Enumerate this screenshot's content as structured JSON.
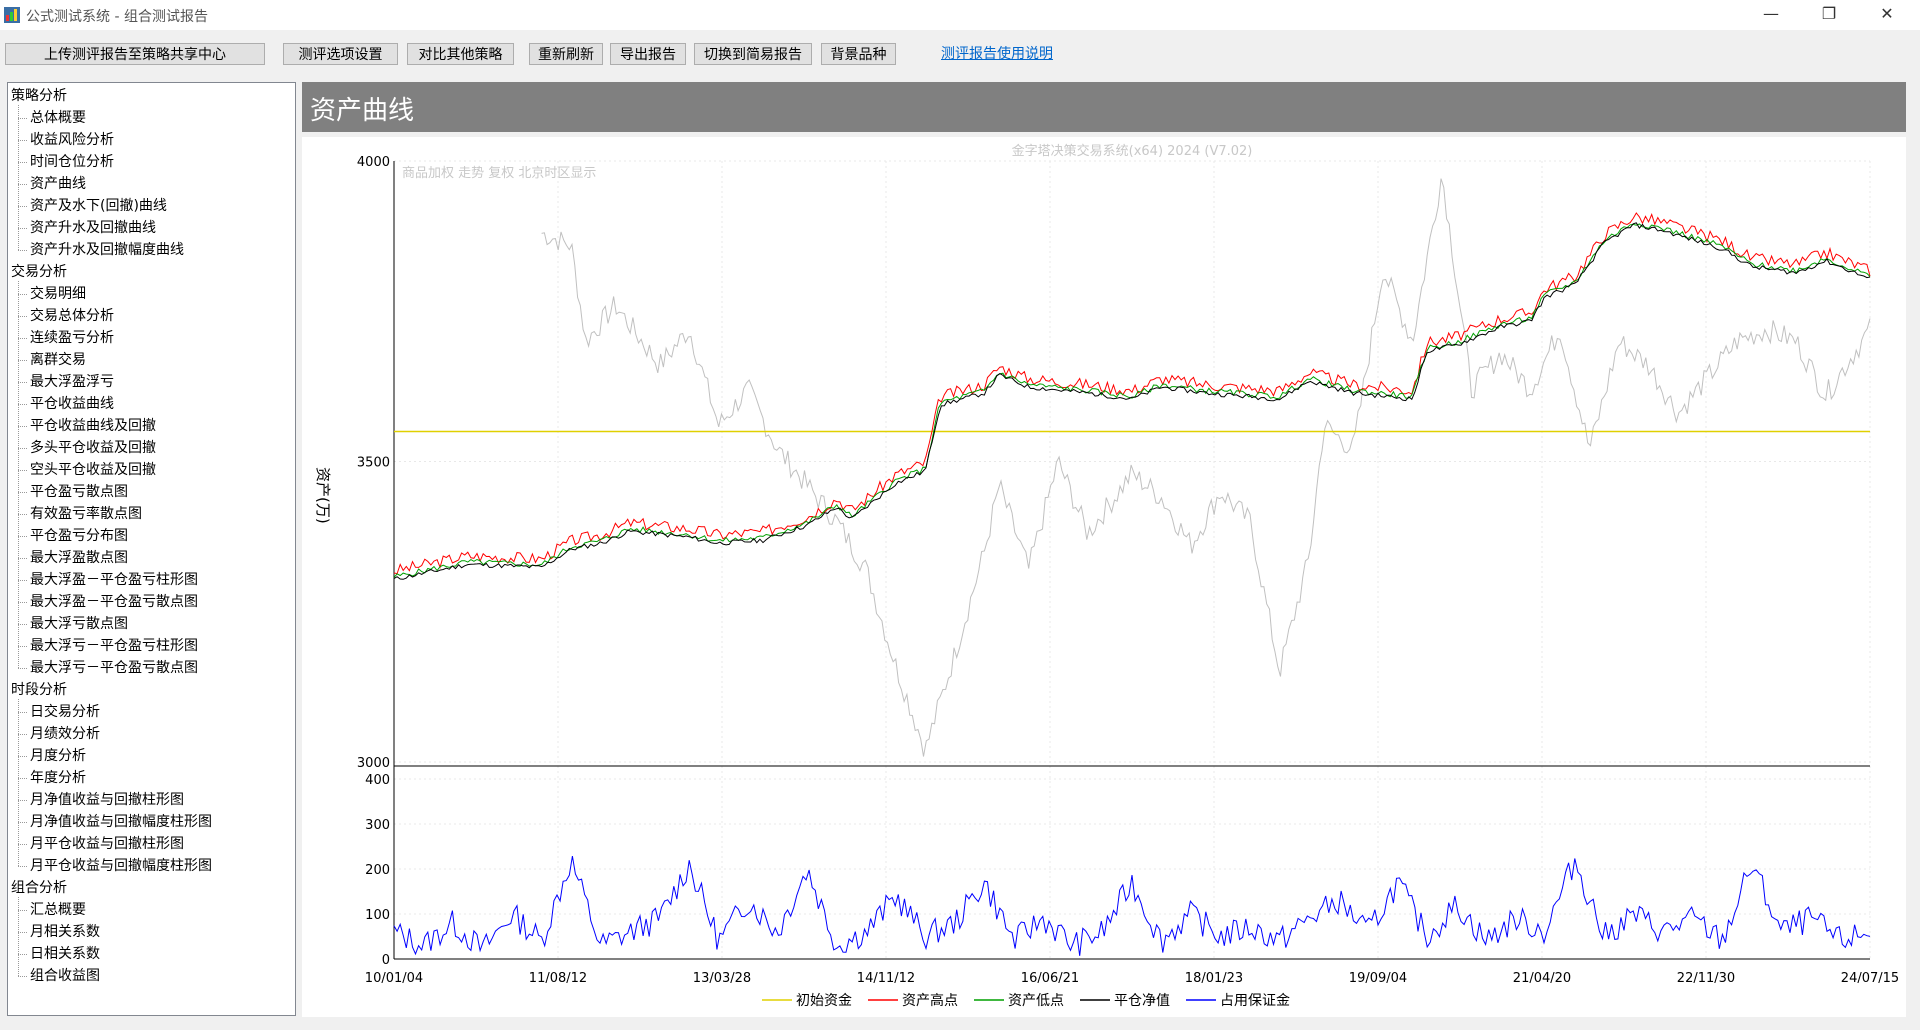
{
  "window": {
    "title": "公式测试系统 - 组合测试报告",
    "minimize_glyph": "—",
    "restore_glyph": "❐",
    "close_glyph": "✕"
  },
  "toolbar": {
    "upload": "上传测评报告至策略共享中心",
    "options": "测评选项设置",
    "compare": "对比其他策略",
    "refresh": "重新刷新",
    "export": "导出报告",
    "switch_simple": "切换到简易报告",
    "background": "背景品种",
    "help_link": "测评报告使用说明"
  },
  "tree": [
    {
      "label": "策略分析",
      "level": 0
    },
    {
      "label": "总体概要",
      "level": 1
    },
    {
      "label": "收益风险分析",
      "level": 1
    },
    {
      "label": "时间仓位分析",
      "level": 1
    },
    {
      "label": "资产曲线",
      "level": 1
    },
    {
      "label": "资产及水下(回撤)曲线",
      "level": 1
    },
    {
      "label": "资产升水及回撤曲线",
      "level": 1
    },
    {
      "label": "资产升水及回撤幅度曲线",
      "level": 1
    },
    {
      "label": "交易分析",
      "level": 0
    },
    {
      "label": "交易明细",
      "level": 1
    },
    {
      "label": "交易总体分析",
      "level": 1
    },
    {
      "label": "连续盈亏分析",
      "level": 1
    },
    {
      "label": "离群交易",
      "level": 1
    },
    {
      "label": "最大浮盈浮亏",
      "level": 1
    },
    {
      "label": "平仓收益曲线",
      "level": 1
    },
    {
      "label": "平仓收益曲线及回撤",
      "level": 1
    },
    {
      "label": "多头平仓收益及回撤",
      "level": 1
    },
    {
      "label": "空头平仓收益及回撤",
      "level": 1
    },
    {
      "label": "平仓盈亏散点图",
      "level": 1
    },
    {
      "label": "有效盈亏率散点图",
      "level": 1
    },
    {
      "label": "平仓盈亏分布图",
      "level": 1
    },
    {
      "label": "最大浮盈散点图",
      "level": 1
    },
    {
      "label": "最大浮盈－平仓盈亏柱形图",
      "level": 1
    },
    {
      "label": "最大浮盈－平仓盈亏散点图",
      "level": 1
    },
    {
      "label": "最大浮亏散点图",
      "level": 1
    },
    {
      "label": "最大浮亏－平仓盈亏柱形图",
      "level": 1
    },
    {
      "label": "最大浮亏－平仓盈亏散点图",
      "level": 1
    },
    {
      "label": "时段分析",
      "level": 0
    },
    {
      "label": "日交易分析",
      "level": 1
    },
    {
      "label": "月绩效分析",
      "level": 1
    },
    {
      "label": "月度分析",
      "level": 1
    },
    {
      "label": "年度分析",
      "level": 1
    },
    {
      "label": "月净值收益与回撤柱形图",
      "level": 1
    },
    {
      "label": "月净值收益与回撤幅度柱形图",
      "level": 1
    },
    {
      "label": "月平仓收益与回撤柱形图",
      "level": 1
    },
    {
      "label": "月平仓收益与回撤幅度柱形图",
      "level": 1
    },
    {
      "label": "组合分析",
      "level": 0
    },
    {
      "label": "汇总概要",
      "level": 1
    },
    {
      "label": "月相关系数",
      "level": 1
    },
    {
      "label": "日相关系数",
      "level": 1
    },
    {
      "label": "组合收益图",
      "level": 1
    }
  ],
  "panel": {
    "title": "资产曲线"
  },
  "chart_data": {
    "type": "line",
    "watermark": "金字塔决策交易系统(x64) 2024 (V7.02)",
    "subtitle": "商品加权 走势 复权 北京时区显示",
    "ylabel": "资产(万)",
    "ylim": [
      3000,
      4000
    ],
    "yticks": [
      "4000",
      "3500",
      "3000"
    ],
    "sub_ylim": [
      0,
      400
    ],
    "sub_yticks": [
      "400",
      "300",
      "200",
      "100",
      "0"
    ],
    "x_tick_labels": [
      "10/01/04",
      "11/08/12",
      "13/03/28",
      "14/11/12",
      "16/06/21",
      "18/01/23",
      "19/09/04",
      "21/04/20",
      "22/11/30",
      "24/07/15"
    ],
    "initial_capital": 3550,
    "colors": {
      "initial": "#e0d000",
      "high": "#ff0000",
      "low": "#00a000",
      "net": "#000000",
      "margin": "#0000ff",
      "background": "#c0c0c0"
    },
    "legend": [
      "初始资金",
      "资产高点",
      "资产低点",
      "平仓净值",
      "占用保证金"
    ],
    "net_value_series": {
      "x": [
        0,
        0.02,
        0.05,
        0.1,
        0.12,
        0.14,
        0.16,
        0.2,
        0.22,
        0.25,
        0.28,
        0.3,
        0.31,
        0.34,
        0.36,
        0.37,
        0.4,
        0.41,
        0.43,
        0.47,
        0.5,
        0.52,
        0.55,
        0.6,
        0.62,
        0.65,
        0.69,
        0.7,
        0.72,
        0.75,
        0.77,
        0.78,
        0.8,
        0.82,
        0.84,
        0.86,
        0.9,
        0.92,
        0.95,
        0.97,
        1.0
      ],
      "y": [
        3310,
        3320,
        3335,
        3330,
        3360,
        3370,
        3390,
        3380,
        3370,
        3375,
        3400,
        3430,
        3410,
        3470,
        3490,
        3600,
        3620,
        3650,
        3630,
        3620,
        3610,
        3630,
        3620,
        3610,
        3640,
        3620,
        3610,
        3690,
        3700,
        3730,
        3740,
        3780,
        3800,
        3870,
        3900,
        3890,
        3860,
        3830,
        3820,
        3840,
        3810
      ]
    },
    "background_series": {
      "x": [
        0.1,
        0.12,
        0.13,
        0.15,
        0.18,
        0.2,
        0.22,
        0.24,
        0.26,
        0.28,
        0.3,
        0.32,
        0.34,
        0.36,
        0.38,
        0.4,
        0.41,
        0.43,
        0.45,
        0.47,
        0.5,
        0.52,
        0.54,
        0.56,
        0.58,
        0.6,
        0.62,
        0.63,
        0.65,
        0.67,
        0.69,
        0.71,
        0.73,
        0.75,
        0.77,
        0.79,
        0.81,
        0.83,
        0.85,
        0.87,
        0.89,
        0.91,
        0.93,
        0.95,
        0.97,
        1.0
      ],
      "y": [
        3880,
        3860,
        3700,
        3760,
        3660,
        3720,
        3560,
        3620,
        3520,
        3460,
        3400,
        3320,
        3160,
        3020,
        3180,
        3350,
        3460,
        3320,
        3500,
        3380,
        3480,
        3440,
        3360,
        3450,
        3400,
        3150,
        3340,
        3560,
        3520,
        3820,
        3700,
        3980,
        3620,
        3680,
        3620,
        3720,
        3520,
        3700,
        3660,
        3580,
        3640,
        3700,
        3720,
        3700,
        3610,
        3720
      ]
    },
    "margin_series": {
      "x": [
        0,
        0.02,
        0.04,
        0.06,
        0.08,
        0.1,
        0.12,
        0.14,
        0.16,
        0.18,
        0.2,
        0.22,
        0.24,
        0.26,
        0.28,
        0.3,
        0.32,
        0.34,
        0.36,
        0.38,
        0.4,
        0.42,
        0.44,
        0.46,
        0.48,
        0.5,
        0.52,
        0.54,
        0.56,
        0.58,
        0.6,
        0.62,
        0.64,
        0.66,
        0.68,
        0.7,
        0.72,
        0.74,
        0.76,
        0.78,
        0.8,
        0.82,
        0.84,
        0.86,
        0.88,
        0.9,
        0.92,
        0.94,
        0.96,
        0.98,
        1.0
      ],
      "y": [
        60,
        30,
        80,
        20,
        100,
        40,
        220,
        30,
        60,
        90,
        210,
        40,
        130,
        60,
        200,
        30,
        60,
        140,
        50,
        80,
        170,
        40,
        90,
        30,
        60,
        170,
        40,
        100,
        50,
        70,
        40,
        90,
        130,
        60,
        170,
        50,
        120,
        40,
        90,
        60,
        220,
        50,
        100,
        60,
        90,
        40,
        210,
        60,
        90,
        40,
        60
      ]
    }
  }
}
